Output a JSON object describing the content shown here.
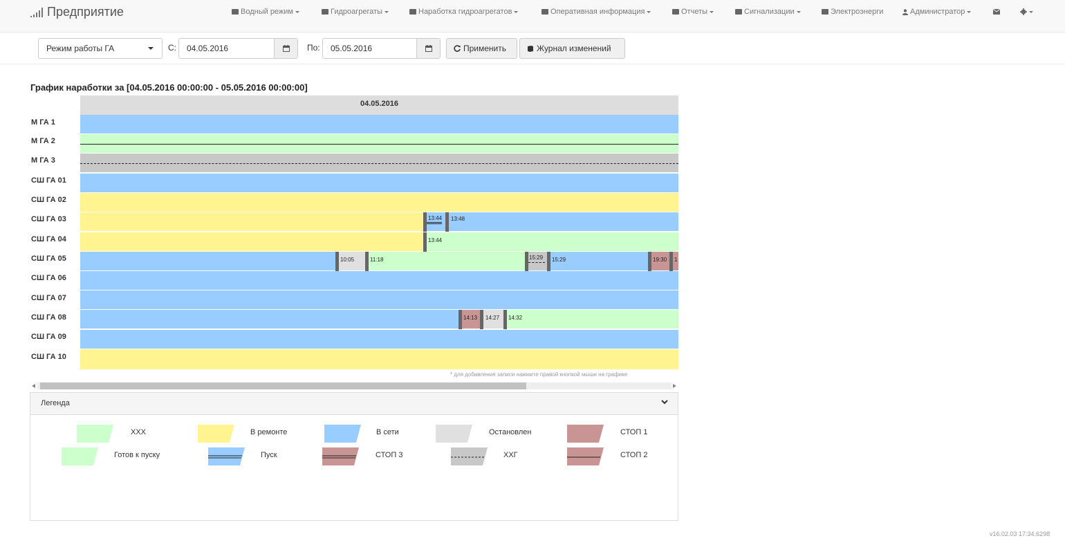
{
  "app": {
    "brand": "Предприятие"
  },
  "nav": {
    "items": [
      {
        "label": "Водный режим",
        "icon": "folder-icon",
        "caret": true
      },
      {
        "label": "Гидроагрегаты",
        "icon": "folder-icon",
        "caret": true
      },
      {
        "label": "Наработка гидроагрегатов",
        "icon": "folder-icon",
        "caret": true
      },
      {
        "label": "Оперативная информация",
        "icon": "folder-icon",
        "caret": true
      },
      {
        "label": "Отчеты",
        "icon": "folder-icon",
        "caret": true
      },
      {
        "label": "Сигнализации",
        "icon": "folder-icon",
        "caret": true
      },
      {
        "label": "Электроэнерги",
        "icon": "folder-icon",
        "caret": false
      },
      {
        "label": "Администратор",
        "icon": "user-icon",
        "caret": true
      }
    ]
  },
  "toolbar": {
    "mode_select": "Режим работы ГА",
    "from_label": "С:",
    "from_value": "04.05.2016",
    "to_label": "По:",
    "to_value": "05.05.2016",
    "apply_label": "Применить",
    "journal_label": "Журнал изменений"
  },
  "chart": {
    "title": "График наработки за [04.05.2016 00:00:00 - 05.05.2016 00:00:00]",
    "date_header": "04.05.2016",
    "hint": "* для добавления записи нажмите правой кнопкой мыши на графике"
  },
  "colors": {
    "hhh": "#ccffcc",
    "repair": "#fff48f",
    "online": "#99ccff",
    "stopped": "#e0e0e0",
    "stop": "#c99494",
    "hhg": "#c8c8c8"
  },
  "rows": [
    {
      "label": "М ГА 1",
      "segments": [
        {
          "state": "online",
          "start": "00:00",
          "end": "24:00"
        }
      ],
      "marks": []
    },
    {
      "label": "М ГА 2",
      "segments": [
        {
          "state": "ready_start",
          "start": "00:00",
          "end": "24:00"
        }
      ],
      "marks": []
    },
    {
      "label": "М ГА 3",
      "segments": [
        {
          "state": "hhg",
          "start": "00:00",
          "end": "24:00"
        }
      ],
      "marks": []
    },
    {
      "label": "СШ ГА 01",
      "segments": [
        {
          "state": "online",
          "start": "00:00",
          "end": "24:00"
        }
      ],
      "marks": []
    },
    {
      "label": "СШ ГА 02",
      "segments": [
        {
          "state": "repair",
          "start": "00:00",
          "end": "24:00"
        }
      ],
      "marks": []
    },
    {
      "label": "СШ ГА 03",
      "segments": [
        {
          "state": "repair",
          "start": "00:00",
          "end": "13:44"
        },
        {
          "state": "start",
          "start": "13:44",
          "end": "13:48"
        },
        {
          "state": "online",
          "start": "13:48",
          "end": "24:00"
        }
      ],
      "marks": [
        "13:44",
        "13:48"
      ]
    },
    {
      "label": "СШ ГА 04",
      "segments": [
        {
          "state": "repair",
          "start": "00:00",
          "end": "13:44"
        },
        {
          "state": "hhh",
          "start": "13:44",
          "end": "24:00"
        }
      ],
      "marks": [
        "13:44"
      ]
    },
    {
      "label": "СШ ГА 05",
      "segments": [
        {
          "state": "online",
          "start": "00:00",
          "end": "10:05"
        },
        {
          "state": "stopped",
          "start": "10:05",
          "end": "11:18"
        },
        {
          "state": "hhh",
          "start": "11:18",
          "end": "15:29"
        },
        {
          "state": "hhg",
          "start": "15:29",
          "end": "15:29"
        },
        {
          "state": "online",
          "start": "15:29",
          "end": "19:30"
        },
        {
          "state": "stop1",
          "start": "19:30",
          "end": "24:00"
        }
      ],
      "marks": [
        "10:05",
        "11:18",
        "15:29",
        "15:29",
        "19:30",
        "1"
      ]
    },
    {
      "label": "СШ ГА 06",
      "segments": [
        {
          "state": "online",
          "start": "00:00",
          "end": "24:00"
        }
      ],
      "marks": []
    },
    {
      "label": "СШ ГА 07",
      "segments": [
        {
          "state": "online",
          "start": "00:00",
          "end": "24:00"
        }
      ],
      "marks": []
    },
    {
      "label": "СШ ГА 08",
      "segments": [
        {
          "state": "online",
          "start": "00:00",
          "end": "14:13"
        },
        {
          "state": "stop1",
          "start": "14:13",
          "end": "14:27"
        },
        {
          "state": "stopped",
          "start": "14:27",
          "end": "14:32"
        },
        {
          "state": "hhh",
          "start": "14:32",
          "end": "24:00"
        }
      ],
      "marks": [
        "14:13",
        "14:27",
        "14:32"
      ]
    },
    {
      "label": "СШ ГА 09",
      "segments": [
        {
          "state": "online",
          "start": "00:00",
          "end": "24:00"
        }
      ],
      "marks": []
    },
    {
      "label": "СШ ГА 10",
      "segments": [
        {
          "state": "repair",
          "start": "00:00",
          "end": "24:00"
        }
      ],
      "marks": []
    }
  ],
  "legend": {
    "title": "Легенда",
    "items": [
      {
        "label": "ХХХ",
        "state": "hhh"
      },
      {
        "label": "В ремонте",
        "state": "repair"
      },
      {
        "label": "В сети",
        "state": "online"
      },
      {
        "label": "Остановлен",
        "state": "stopped"
      },
      {
        "label": "СТОП 1",
        "state": "stop1"
      },
      {
        "label": "Готов к пуску",
        "state": "ready_start"
      },
      {
        "label": "Пуск",
        "state": "start"
      },
      {
        "label": "СТОП 3",
        "state": "stop3"
      },
      {
        "label": "ХХГ",
        "state": "hhg"
      },
      {
        "label": "СТОП 2",
        "state": "stop2"
      }
    ]
  },
  "footer": {
    "version": "v16.02.03 17:34.6298"
  }
}
